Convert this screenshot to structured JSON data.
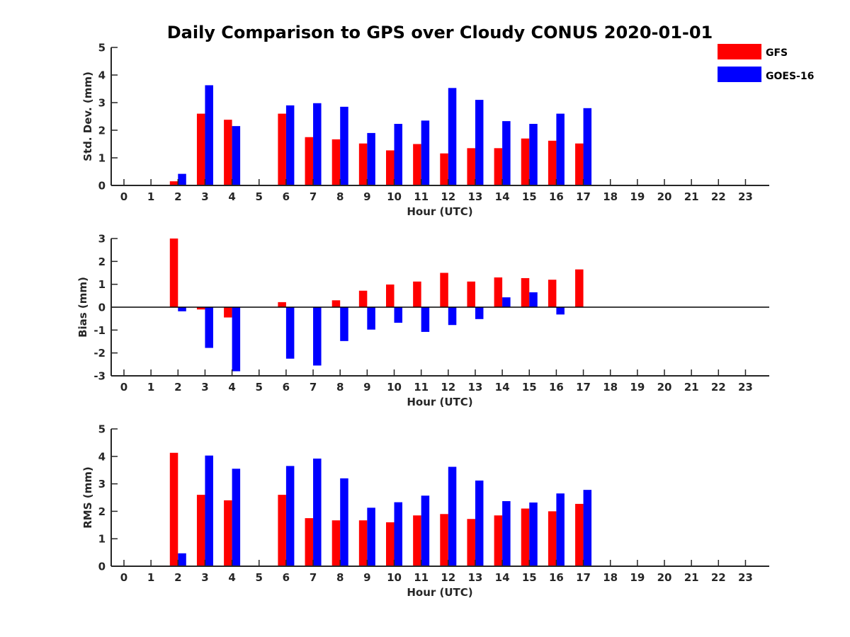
{
  "title": "Daily Comparison to GPS over Cloudy CONUS 2020-01-01",
  "legend": [
    {
      "name": "GFS",
      "color": "#ff0000"
    },
    {
      "name": "GOES-16",
      "color": "#0000ff"
    }
  ],
  "chart_data": [
    {
      "type": "bar",
      "ylabel": "Std. Dev. (mm)",
      "xlabel": "Hour (UTC)",
      "ylim": [
        0,
        5
      ],
      "yticks": [
        0,
        1,
        2,
        3,
        4,
        5
      ],
      "categories": [
        "0",
        "1",
        "2",
        "3",
        "4",
        "5",
        "6",
        "7",
        "8",
        "9",
        "10",
        "11",
        "12",
        "13",
        "14",
        "15",
        "16",
        "17",
        "18",
        "19",
        "20",
        "21",
        "22",
        "23"
      ],
      "series": [
        {
          "name": "GFS",
          "color": "#ff0000",
          "values": [
            null,
            null,
            0.15,
            2.6,
            2.38,
            null,
            2.6,
            1.75,
            1.67,
            1.52,
            1.27,
            1.5,
            1.16,
            1.35,
            1.35,
            1.7,
            1.62,
            1.52,
            null,
            null,
            null,
            null,
            null,
            null
          ]
        },
        {
          "name": "GOES-16",
          "color": "#0000ff",
          "values": [
            null,
            null,
            0.42,
            3.63,
            2.15,
            null,
            2.9,
            2.98,
            2.85,
            1.9,
            2.23,
            2.35,
            3.53,
            3.1,
            2.33,
            2.23,
            2.6,
            2.8,
            null,
            null,
            null,
            null,
            null,
            null
          ]
        }
      ]
    },
    {
      "type": "bar",
      "ylabel": "Bias (mm)",
      "xlabel": "Hour (UTC)",
      "ylim": [
        -3,
        3
      ],
      "yticks": [
        -3,
        -2,
        -1,
        0,
        1,
        2,
        3
      ],
      "categories": [
        "0",
        "1",
        "2",
        "3",
        "4",
        "5",
        "6",
        "7",
        "8",
        "9",
        "10",
        "11",
        "12",
        "13",
        "14",
        "15",
        "16",
        "17",
        "18",
        "19",
        "20",
        "21",
        "22",
        "23"
      ],
      "series": [
        {
          "name": "GFS",
          "color": "#ff0000",
          "values": [
            null,
            null,
            3.0,
            -0.1,
            -0.45,
            null,
            0.22,
            null,
            0.3,
            0.72,
            0.99,
            1.12,
            1.5,
            1.12,
            1.3,
            1.27,
            1.2,
            1.65,
            null,
            null,
            null,
            null,
            null,
            null
          ]
        },
        {
          "name": "GOES-16",
          "color": "#0000ff",
          "values": [
            null,
            null,
            -0.18,
            -1.78,
            -2.8,
            null,
            -2.25,
            -2.55,
            -1.48,
            -0.98,
            -0.68,
            -1.08,
            -0.78,
            -0.52,
            0.43,
            0.65,
            -0.32,
            null,
            null,
            null,
            null,
            null,
            null,
            null
          ]
        }
      ]
    },
    {
      "type": "bar",
      "ylabel": "RMS (mm)",
      "xlabel": "Hour (UTC)",
      "ylim": [
        0,
        5
      ],
      "yticks": [
        0,
        1,
        2,
        3,
        4,
        5
      ],
      "categories": [
        "0",
        "1",
        "2",
        "3",
        "4",
        "5",
        "6",
        "7",
        "8",
        "9",
        "10",
        "11",
        "12",
        "13",
        "14",
        "15",
        "16",
        "17",
        "18",
        "19",
        "20",
        "21",
        "22",
        "23"
      ],
      "series": [
        {
          "name": "GFS",
          "color": "#ff0000",
          "values": [
            null,
            null,
            4.13,
            2.6,
            2.4,
            null,
            2.6,
            1.75,
            1.67,
            1.67,
            1.6,
            1.85,
            1.9,
            1.72,
            1.85,
            2.1,
            2.0,
            2.27,
            null,
            null,
            null,
            null,
            null,
            null
          ]
        },
        {
          "name": "GOES-16",
          "color": "#0000ff",
          "values": [
            null,
            null,
            0.47,
            4.03,
            3.55,
            null,
            3.65,
            3.92,
            3.2,
            2.13,
            2.33,
            2.57,
            3.62,
            3.12,
            2.37,
            2.32,
            2.65,
            2.78,
            null,
            null,
            null,
            null,
            null,
            null
          ]
        }
      ]
    }
  ]
}
